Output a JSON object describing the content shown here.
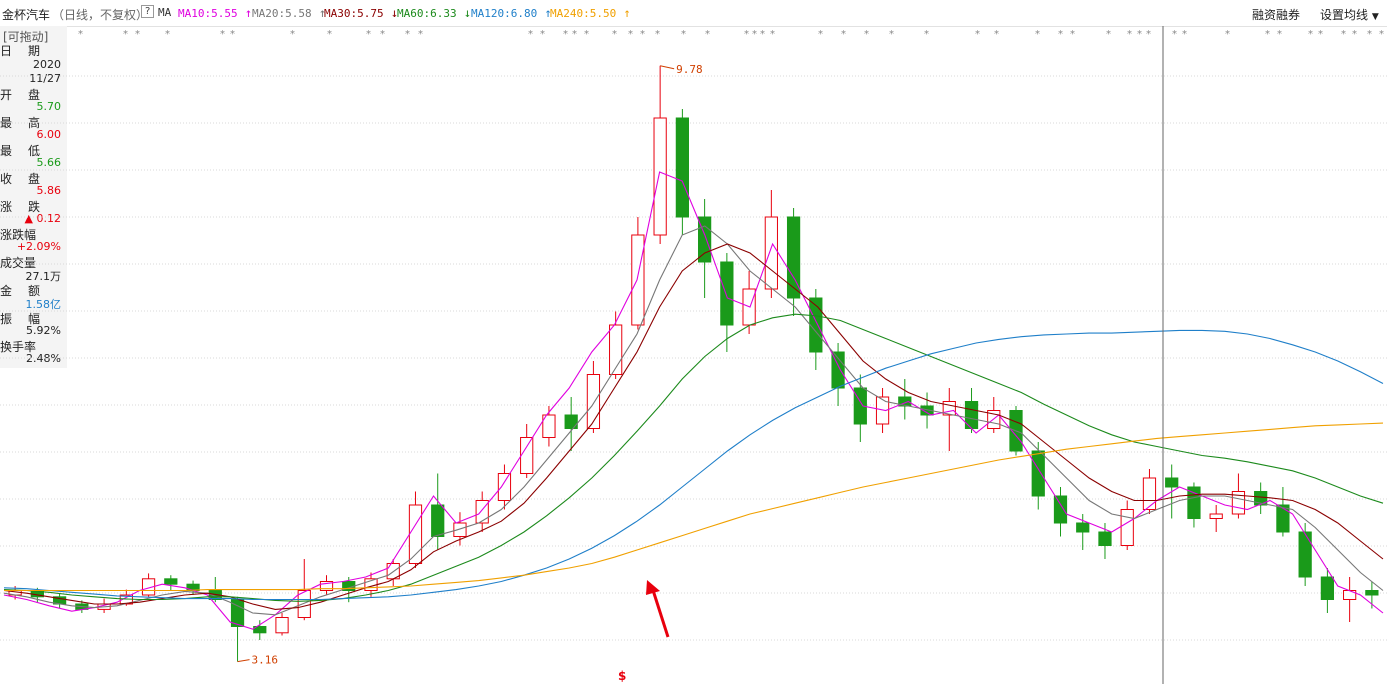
{
  "header": {
    "stock_name": "金杯汽车",
    "mode": "（日线，不复权）",
    "help": "?",
    "ma_label": "MA",
    "ma_items": [
      {
        "text": "MA10:5.55",
        "arrow": "↑",
        "color": "#e000e0"
      },
      {
        "text": "MA20:5.58",
        "arrow": "↑",
        "color": "#777777"
      },
      {
        "text": "MA30:5.75",
        "arrow": "↓",
        "color": "#8b0000"
      },
      {
        "text": "MA60:6.33",
        "arrow": "↓",
        "color": "#1c8a1c"
      },
      {
        "text": "MA120:6.80",
        "arrow": "↑",
        "color": "#1f7fc9"
      },
      {
        "text": "MA240:5.50",
        "arrow": "↑",
        "color": "#f0a000"
      }
    ],
    "menu_margin": "融资融券",
    "menu_settings": "设置均线",
    "dropdown_icon": "triangle-down-icon"
  },
  "info": {
    "drag_label": "[可拖动]",
    "date_label": "日　期",
    "year": "2020",
    "day": "11/27",
    "open_label": "开　盘",
    "open": "5.70",
    "high_label": "最　高",
    "high": "6.00",
    "low_label": "最　低",
    "low": "5.66",
    "close_label": "收　盘",
    "close": "5.86",
    "change_label": "涨　跌",
    "change": "▲ 0.12",
    "pct_label": "涨跌幅",
    "pct": "+2.09%",
    "vol_label": "成交量",
    "vol": "27.1万",
    "amt_label": "金　额",
    "amt": "1.58亿",
    "amp_label": "振　幅",
    "amp": "5.92%",
    "turn_label": "换手率",
    "turn": "2.48%"
  },
  "colors": {
    "up": "#e8000d",
    "down": "#1a9a1a",
    "grid": "#d8d8d8",
    "crosshair": "#666666",
    "annotation": "#e8000d",
    "extreme": "#d04000"
  },
  "chart_data": {
    "type": "line",
    "title": "金杯汽车 日线 不复权",
    "y_range": [
      3.0,
      10.0
    ],
    "grid": true,
    "max_label": "9.78",
    "min_label": "3.16",
    "marker_label": "$",
    "ma_current": {
      "MA10": 5.55,
      "MA20": 5.58,
      "MA30": 5.75,
      "MA60": 6.33,
      "MA120": 6.8,
      "MA240": 5.5
    },
    "series": [
      {
        "name": "MA10",
        "color": "#e000e0",
        "values": [
          3.9,
          3.85,
          3.78,
          3.72,
          3.76,
          3.82,
          3.95,
          4.02,
          3.98,
          3.9,
          3.6,
          3.52,
          3.68,
          3.9,
          4.02,
          4.05,
          4.1,
          4.2,
          4.6,
          5.0,
          4.7,
          4.8,
          5.1,
          5.5,
          5.9,
          6.2,
          6.6,
          6.9,
          7.4,
          8.6,
          8.5,
          7.9,
          7.2,
          7.1,
          7.8,
          7.4,
          6.9,
          6.4,
          6.0,
          5.95,
          6.05,
          5.9,
          5.95,
          5.7,
          5.9,
          5.6,
          5.2,
          4.8,
          4.7,
          4.6,
          4.75,
          4.95,
          5.1,
          5.0,
          4.9,
          4.85,
          4.95,
          4.8,
          4.4,
          4.0,
          3.9,
          3.7
        ]
      },
      {
        "name": "MA20",
        "color": "#777777",
        "values": [
          3.92,
          3.88,
          3.82,
          3.78,
          3.76,
          3.78,
          3.84,
          3.9,
          3.94,
          3.92,
          3.82,
          3.7,
          3.68,
          3.78,
          3.88,
          3.96,
          4.04,
          4.12,
          4.3,
          4.55,
          4.62,
          4.7,
          4.85,
          5.1,
          5.4,
          5.7,
          6.0,
          6.4,
          6.8,
          7.4,
          7.9,
          8.0,
          7.8,
          7.5,
          7.3,
          7.1,
          6.8,
          6.5,
          6.2,
          6.05,
          6.0,
          5.95,
          5.9,
          5.85,
          5.8,
          5.7,
          5.45,
          5.2,
          4.95,
          4.8,
          4.75,
          4.85,
          4.95,
          5.0,
          5.0,
          4.95,
          4.9,
          4.85,
          4.65,
          4.4,
          4.15,
          3.95
        ]
      },
      {
        "name": "MA30",
        "color": "#8b0000",
        "values": [
          3.95,
          3.92,
          3.88,
          3.84,
          3.8,
          3.8,
          3.82,
          3.86,
          3.9,
          3.92,
          3.88,
          3.8,
          3.74,
          3.76,
          3.82,
          3.9,
          3.98,
          4.05,
          4.18,
          4.38,
          4.5,
          4.6,
          4.72,
          4.92,
          5.2,
          5.5,
          5.8,
          6.2,
          6.6,
          7.1,
          7.5,
          7.7,
          7.8,
          7.7,
          7.5,
          7.3,
          7.1,
          6.8,
          6.5,
          6.3,
          6.15,
          6.05,
          6.0,
          5.95,
          5.9,
          5.8,
          5.6,
          5.4,
          5.2,
          5.05,
          4.95,
          4.95,
          5.0,
          5.02,
          5.02,
          5.0,
          4.98,
          4.95,
          4.85,
          4.7,
          4.5,
          4.3
        ]
      },
      {
        "name": "MA60",
        "color": "#1c8a1c",
        "values": [
          3.96,
          3.95,
          3.93,
          3.9,
          3.88,
          3.86,
          3.85,
          3.85,
          3.86,
          3.88,
          3.88,
          3.86,
          3.84,
          3.83,
          3.84,
          3.86,
          3.9,
          3.95,
          4.02,
          4.12,
          4.22,
          4.32,
          4.45,
          4.6,
          4.78,
          4.98,
          5.2,
          5.45,
          5.72,
          6.0,
          6.3,
          6.55,
          6.75,
          6.9,
          6.98,
          7.02,
          7.0,
          6.95,
          6.85,
          6.75,
          6.65,
          6.55,
          6.45,
          6.35,
          6.25,
          6.15,
          6.02,
          5.9,
          5.78,
          5.68,
          5.6,
          5.55,
          5.5,
          5.45,
          5.42,
          5.38,
          5.33,
          5.28,
          5.2,
          5.1,
          5.0,
          4.92
        ]
      },
      {
        "name": "MA120",
        "color": "#1f7fc9",
        "values": [
          3.98,
          3.97,
          3.95,
          3.93,
          3.91,
          3.89,
          3.88,
          3.87,
          3.86,
          3.86,
          3.86,
          3.85,
          3.85,
          3.85,
          3.85,
          3.86,
          3.87,
          3.88,
          3.9,
          3.93,
          3.96,
          4.0,
          4.05,
          4.12,
          4.2,
          4.3,
          4.42,
          4.56,
          4.72,
          4.9,
          5.1,
          5.3,
          5.5,
          5.68,
          5.84,
          5.98,
          6.1,
          6.22,
          6.32,
          6.42,
          6.5,
          6.58,
          6.64,
          6.7,
          6.74,
          6.77,
          6.79,
          6.8,
          6.81,
          6.81,
          6.82,
          6.83,
          6.84,
          6.84,
          6.83,
          6.8,
          6.75,
          6.68,
          6.6,
          6.5,
          6.38,
          6.25
        ]
      },
      {
        "name": "MA240",
        "color": "#f0a000",
        "values": [
          3.95,
          3.95,
          3.95,
          3.95,
          3.95,
          3.95,
          3.95,
          3.95,
          3.95,
          3.96,
          3.96,
          3.96,
          3.96,
          3.96,
          3.97,
          3.97,
          3.98,
          3.99,
          4.0,
          4.02,
          4.04,
          4.06,
          4.09,
          4.12,
          4.16,
          4.2,
          4.25,
          4.32,
          4.4,
          4.48,
          4.56,
          4.64,
          4.72,
          4.8,
          4.86,
          4.92,
          4.98,
          5.04,
          5.1,
          5.15,
          5.2,
          5.25,
          5.3,
          5.35,
          5.4,
          5.44,
          5.48,
          5.52,
          5.55,
          5.58,
          5.61,
          5.64,
          5.66,
          5.68,
          5.7,
          5.72,
          5.74,
          5.76,
          5.78,
          5.79,
          5.8,
          5.81
        ]
      }
    ],
    "candles": [
      {
        "o": 3.9,
        "c": 3.95,
        "h": 4.0,
        "l": 3.85
      },
      {
        "o": 3.95,
        "c": 3.88,
        "h": 3.98,
        "l": 3.82
      },
      {
        "o": 3.88,
        "c": 3.8,
        "h": 3.92,
        "l": 3.75
      },
      {
        "o": 3.8,
        "c": 3.74,
        "h": 3.84,
        "l": 3.7
      },
      {
        "o": 3.74,
        "c": 3.8,
        "h": 3.86,
        "l": 3.7
      },
      {
        "o": 3.8,
        "c": 3.9,
        "h": 3.96,
        "l": 3.78
      },
      {
        "o": 3.9,
        "c": 4.08,
        "h": 4.14,
        "l": 3.88
      },
      {
        "o": 4.08,
        "c": 4.02,
        "h": 4.12,
        "l": 3.95
      },
      {
        "o": 4.02,
        "c": 3.95,
        "h": 4.06,
        "l": 3.9
      },
      {
        "o": 3.95,
        "c": 3.85,
        "h": 4.1,
        "l": 3.82
      },
      {
        "o": 3.85,
        "c": 3.55,
        "h": 3.88,
        "l": 3.16
      },
      {
        "o": 3.55,
        "c": 3.48,
        "h": 3.62,
        "l": 3.4
      },
      {
        "o": 3.48,
        "c": 3.65,
        "h": 3.7,
        "l": 3.45
      },
      {
        "o": 3.65,
        "c": 3.95,
        "h": 4.3,
        "l": 3.62
      },
      {
        "o": 3.95,
        "c": 4.05,
        "h": 4.12,
        "l": 3.9
      },
      {
        "o": 4.05,
        "c": 3.95,
        "h": 4.1,
        "l": 3.82
      },
      {
        "o": 3.95,
        "c": 4.08,
        "h": 4.15,
        "l": 3.88
      },
      {
        "o": 4.08,
        "c": 4.25,
        "h": 4.3,
        "l": 4.0
      },
      {
        "o": 4.25,
        "c": 4.9,
        "h": 5.05,
        "l": 4.2
      },
      {
        "o": 4.9,
        "c": 4.55,
        "h": 5.25,
        "l": 4.4
      },
      {
        "o": 4.55,
        "c": 4.7,
        "h": 4.82,
        "l": 4.45
      },
      {
        "o": 4.7,
        "c": 4.95,
        "h": 5.05,
        "l": 4.6
      },
      {
        "o": 4.95,
        "c": 5.25,
        "h": 5.35,
        "l": 4.85
      },
      {
        "o": 5.25,
        "c": 5.65,
        "h": 5.8,
        "l": 5.2
      },
      {
        "o": 5.65,
        "c": 5.9,
        "h": 6.0,
        "l": 5.55
      },
      {
        "o": 5.9,
        "c": 5.75,
        "h": 6.1,
        "l": 5.5
      },
      {
        "o": 5.75,
        "c": 6.35,
        "h": 6.5,
        "l": 5.7
      },
      {
        "o": 6.35,
        "c": 6.9,
        "h": 7.05,
        "l": 6.3
      },
      {
        "o": 6.9,
        "c": 7.9,
        "h": 8.1,
        "l": 6.85
      },
      {
        "o": 7.9,
        "c": 9.2,
        "h": 9.78,
        "l": 7.8
      },
      {
        "o": 9.2,
        "c": 8.1,
        "h": 9.3,
        "l": 7.9
      },
      {
        "o": 8.1,
        "c": 7.6,
        "h": 8.3,
        "l": 7.2
      },
      {
        "o": 7.6,
        "c": 6.9,
        "h": 7.7,
        "l": 6.6
      },
      {
        "o": 6.9,
        "c": 7.3,
        "h": 7.5,
        "l": 6.8
      },
      {
        "o": 7.3,
        "c": 8.1,
        "h": 8.4,
        "l": 7.2
      },
      {
        "o": 8.1,
        "c": 7.2,
        "h": 8.2,
        "l": 7.0
      },
      {
        "o": 7.2,
        "c": 6.6,
        "h": 7.3,
        "l": 6.4
      },
      {
        "o": 6.6,
        "c": 6.2,
        "h": 6.7,
        "l": 6.0
      },
      {
        "o": 6.2,
        "c": 5.8,
        "h": 6.35,
        "l": 5.6
      },
      {
        "o": 5.8,
        "c": 6.1,
        "h": 6.2,
        "l": 5.7
      },
      {
        "o": 6.1,
        "c": 6.0,
        "h": 6.3,
        "l": 5.85
      },
      {
        "o": 6.0,
        "c": 5.9,
        "h": 6.15,
        "l": 5.75
      },
      {
        "o": 5.9,
        "c": 6.05,
        "h": 6.2,
        "l": 5.5
      },
      {
        "o": 6.05,
        "c": 5.75,
        "h": 6.2,
        "l": 5.7
      },
      {
        "o": 5.75,
        "c": 5.95,
        "h": 6.1,
        "l": 5.7
      },
      {
        "o": 5.95,
        "c": 5.5,
        "h": 6.0,
        "l": 5.45
      },
      {
        "o": 5.5,
        "c": 5.0,
        "h": 5.6,
        "l": 4.85
      },
      {
        "o": 5.0,
        "c": 4.7,
        "h": 5.1,
        "l": 4.55
      },
      {
        "o": 4.7,
        "c": 4.6,
        "h": 4.8,
        "l": 4.4
      },
      {
        "o": 4.6,
        "c": 4.45,
        "h": 4.7,
        "l": 4.3
      },
      {
        "o": 4.45,
        "c": 4.85,
        "h": 4.95,
        "l": 4.4
      },
      {
        "o": 4.85,
        "c": 5.2,
        "h": 5.3,
        "l": 4.8
      },
      {
        "o": 5.2,
        "c": 5.1,
        "h": 5.35,
        "l": 4.75
      },
      {
        "o": 5.1,
        "c": 4.75,
        "h": 5.15,
        "l": 4.65
      },
      {
        "o": 4.75,
        "c": 4.8,
        "h": 4.9,
        "l": 4.6
      },
      {
        "o": 4.8,
        "c": 5.05,
        "h": 5.25,
        "l": 4.75
      },
      {
        "o": 5.05,
        "c": 4.9,
        "h": 5.15,
        "l": 4.8
      },
      {
        "o": 4.9,
        "c": 4.6,
        "h": 5.1,
        "l": 4.55
      },
      {
        "o": 4.6,
        "c": 4.1,
        "h": 4.7,
        "l": 4.0
      },
      {
        "o": 4.1,
        "c": 3.85,
        "h": 4.2,
        "l": 3.7
      },
      {
        "o": 3.85,
        "c": 3.95,
        "h": 4.1,
        "l": 3.6
      },
      {
        "o": 3.95,
        "c": 3.9,
        "h": 4.05,
        "l": 3.75
      }
    ],
    "event_marker": "* *"
  }
}
